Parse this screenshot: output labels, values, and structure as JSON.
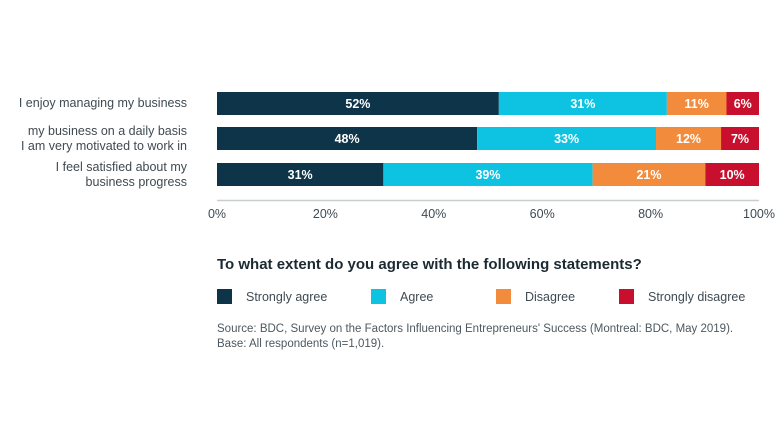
{
  "chart_data": {
    "type": "bar",
    "orientation": "horizontal",
    "stacked": true,
    "title": "To what extent do you agree with the following statements?",
    "categories": [
      [
        "I enjoy managing my business"
      ],
      [
        "my business on a daily basis",
        "I am very motivated to work in"
      ],
      [
        "I feel satisfied about my",
        "business progress"
      ]
    ],
    "series": [
      {
        "name": "Strongly agree",
        "color": "#0d3449",
        "values": [
          52,
          48,
          31
        ]
      },
      {
        "name": "Agree",
        "color": "#0ec3e2",
        "values": [
          31,
          33,
          39
        ]
      },
      {
        "name": "Disagree",
        "color": "#f28c3c",
        "values": [
          11,
          12,
          21
        ]
      },
      {
        "name": "Strongly disagree",
        "color": "#c8102e",
        "values": [
          6,
          7,
          10
        ]
      }
    ],
    "data_label_suffix": "%",
    "xlim": [
      0,
      100
    ],
    "xticks": [
      "0%",
      "20%",
      "40%",
      "60%",
      "80%",
      "100%"
    ],
    "grid": false,
    "legend_placement": "bottom"
  },
  "source": [
    "Source: BDC, Survey on the Factors Influencing Entrepreneurs' Success (Montreal: BDC, May 2019).",
    "Base: All respondents (n=1,019)."
  ]
}
